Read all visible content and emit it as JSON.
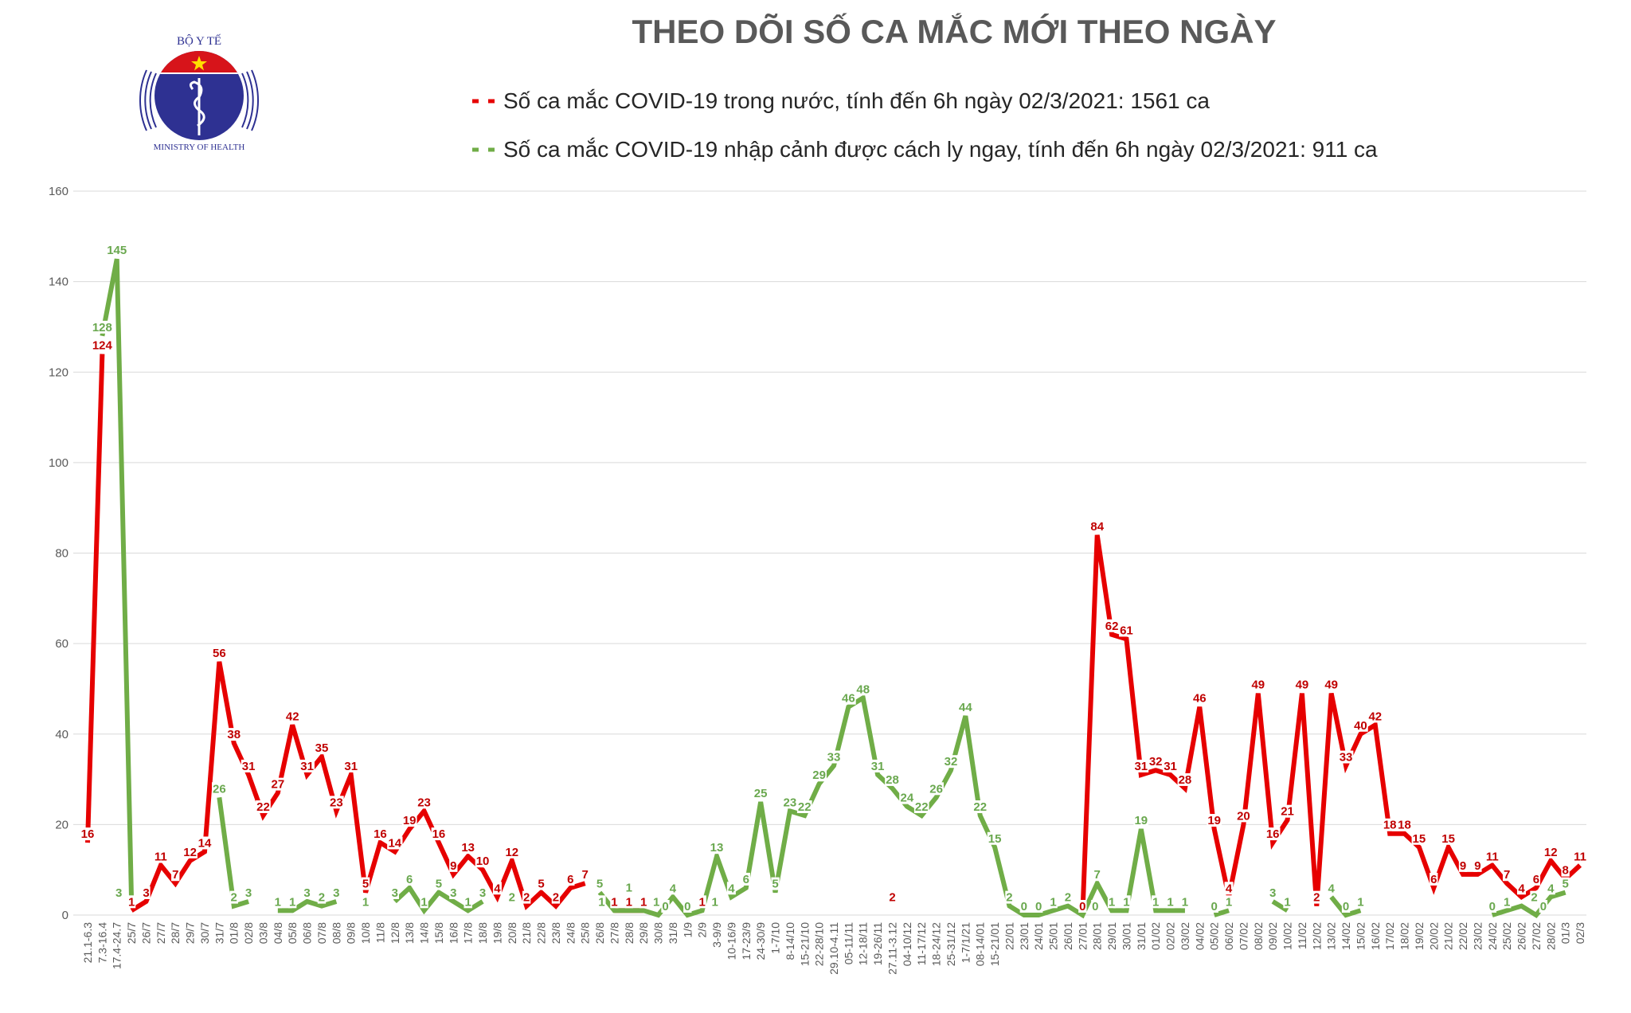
{
  "chart_data": {
    "type": "line",
    "title": "THEO DÕI SỐ CA MẮC MỚI THEO NGÀY",
    "xlabel": "",
    "ylabel": "",
    "ylim": [
      0,
      160
    ],
    "yticks": [
      0,
      20,
      40,
      60,
      80,
      100,
      120,
      140,
      160
    ],
    "grid": true,
    "legend_position": "top",
    "categories": [
      "21.1-6.3",
      "7.3-16.4",
      "17.4-24.7",
      "25/7",
      "26/7",
      "27/7",
      "28/7",
      "29/7",
      "30/7",
      "31/7",
      "01/8",
      "02/8",
      "03/8",
      "04/8",
      "05/8",
      "06/8",
      "07/8",
      "08/8",
      "09/8",
      "10/8",
      "11/8",
      "12/8",
      "13/8",
      "14/8",
      "15/8",
      "16/8",
      "17/8",
      "18/8",
      "19/8",
      "20/8",
      "21/8",
      "22/8",
      "23/8",
      "24/8",
      "25/8",
      "26/8",
      "27/8",
      "28/8",
      "29/8",
      "30/8",
      "31/8",
      "1/9",
      "2/9",
      "3-9/9",
      "10-16/9",
      "17-23/9",
      "24-30/9",
      "1-7/10",
      "8-14/10",
      "15-21/10",
      "22-28/10",
      "29.10-4.11",
      "05-11/11",
      "12-18/11",
      "19-26/11",
      "27.11-3.12",
      "04-10/12",
      "11-17/12",
      "18-24/12",
      "25-31/12",
      "1-7/1/21",
      "08-14/01",
      "15-21/01",
      "22/01",
      "23/01",
      "24/01",
      "25/01",
      "26/01",
      "27/01",
      "28/01",
      "29/01",
      "30/01",
      "31/01",
      "01/02",
      "02/02",
      "03/02",
      "04/02",
      "05/02",
      "06/02",
      "07/02",
      "08/02",
      "09/02",
      "10/02",
      "11/02",
      "12/02",
      "13/02",
      "14/02",
      "15/02",
      "16/02",
      "17/02",
      "18/02",
      "19/02",
      "20/02",
      "21/02",
      "22/02",
      "23/02",
      "24/02",
      "25/02",
      "26/02",
      "27/02",
      "28/02",
      "01/3",
      "02/3"
    ],
    "series": [
      {
        "name": "Số ca mắc COVID-19 trong nước, tính đến 6h ngày 02/3/2021: 1561 ca",
        "color": "#e60000",
        "label_color": "#c00000",
        "values": [
          16,
          124,
          null,
          1,
          3,
          11,
          7,
          12,
          14,
          56,
          38,
          31,
          22,
          27,
          42,
          31,
          35,
          23,
          31,
          5,
          16,
          14,
          19,
          23,
          16,
          9,
          13,
          10,
          4,
          12,
          2,
          5,
          2,
          6,
          7,
          null,
          1,
          1,
          1,
          null,
          null,
          null,
          1,
          null,
          null,
          null,
          null,
          null,
          null,
          null,
          null,
          null,
          null,
          null,
          null,
          2,
          null,
          null,
          null,
          null,
          null,
          null,
          null,
          null,
          null,
          null,
          null,
          null,
          0,
          84,
          62,
          61,
          31,
          32,
          31,
          28,
          46,
          19,
          4,
          20,
          49,
          16,
          21,
          49,
          2,
          49,
          33,
          40,
          42,
          18,
          18,
          15,
          6,
          15,
          9,
          9,
          11,
          7,
          4,
          6,
          12,
          8,
          11
        ]
      },
      {
        "name": "Số ca mắc COVID-19 nhập cảnh được cách ly ngay, tính đến 6h ngày 02/3/2021: 911 ca",
        "color": "#70ad47",
        "label_color": "#6aa84f",
        "values": [
          null,
          128,
          145,
          3,
          null,
          null,
          null,
          null,
          null,
          26,
          2,
          3,
          null,
          1,
          1,
          3,
          2,
          3,
          null,
          1,
          null,
          3,
          6,
          1,
          5,
          3,
          1,
          3,
          null,
          2,
          null,
          null,
          null,
          null,
          null,
          5,
          1,
          1,
          1,
          0,
          4,
          0,
          1,
          13,
          4,
          6,
          25,
          5,
          23,
          22,
          29,
          33,
          46,
          48,
          31,
          28,
          24,
          22,
          26,
          32,
          44,
          22,
          15,
          2,
          0,
          0,
          1,
          2,
          0,
          7,
          1,
          1,
          19,
          1,
          1,
          1,
          null,
          0,
          1,
          null,
          null,
          3,
          1,
          null,
          null,
          4,
          0,
          1,
          null,
          null,
          null,
          null,
          null,
          null,
          null,
          null,
          0,
          1,
          2,
          0,
          4,
          5,
          null
        ]
      }
    ]
  },
  "logo": {
    "top_text": "BỘ Y TẾ",
    "bottom_text": "MINISTRY OF HEALTH",
    "colors": {
      "red": "#d7141a",
      "blue": "#2e3192",
      "star": "#ffde00"
    }
  }
}
